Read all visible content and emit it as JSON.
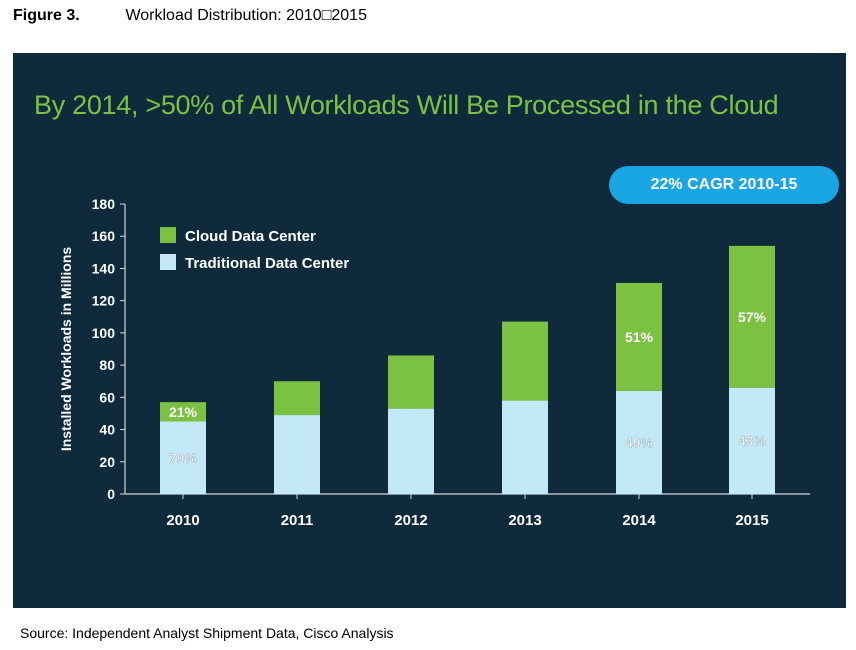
{
  "figure": {
    "number": "Figure 3.",
    "caption": "Workload Distribution: 2010□2015"
  },
  "source": "Source: Independent Analyst Shipment Data, Cisco Analysis",
  "colors": {
    "panel": "#0f2b3b",
    "cloud": "#7cc242",
    "traditional": "#c4e9f6",
    "headline": "#7cc242",
    "badge": "#1aa6e4"
  },
  "chart_data": {
    "type": "bar",
    "stacked": true,
    "title": "By 2014, >50% of All Workloads Will Be Processed in the Cloud",
    "badge": "22% CAGR 2010-15",
    "xlabel": "",
    "ylabel": "Installed Workloads in Millions",
    "ylim": [
      0,
      180
    ],
    "yticks": [
      0,
      20,
      40,
      60,
      80,
      100,
      120,
      140,
      160,
      180
    ],
    "categories": [
      "2010",
      "2011",
      "2012",
      "2013",
      "2014",
      "2015"
    ],
    "legend_position": "top-left",
    "series": [
      {
        "name": "Traditional Data Center",
        "values": [
          45,
          49,
          53,
          58,
          64,
          66
        ],
        "labels": [
          "79%",
          "",
          "",
          "",
          "49%",
          "43%"
        ]
      },
      {
        "name": "Cloud Data Center",
        "values": [
          12,
          21,
          33,
          49,
          67,
          88
        ],
        "labels": [
          "21%",
          "",
          "",
          "",
          "51%",
          "57%"
        ]
      }
    ]
  }
}
